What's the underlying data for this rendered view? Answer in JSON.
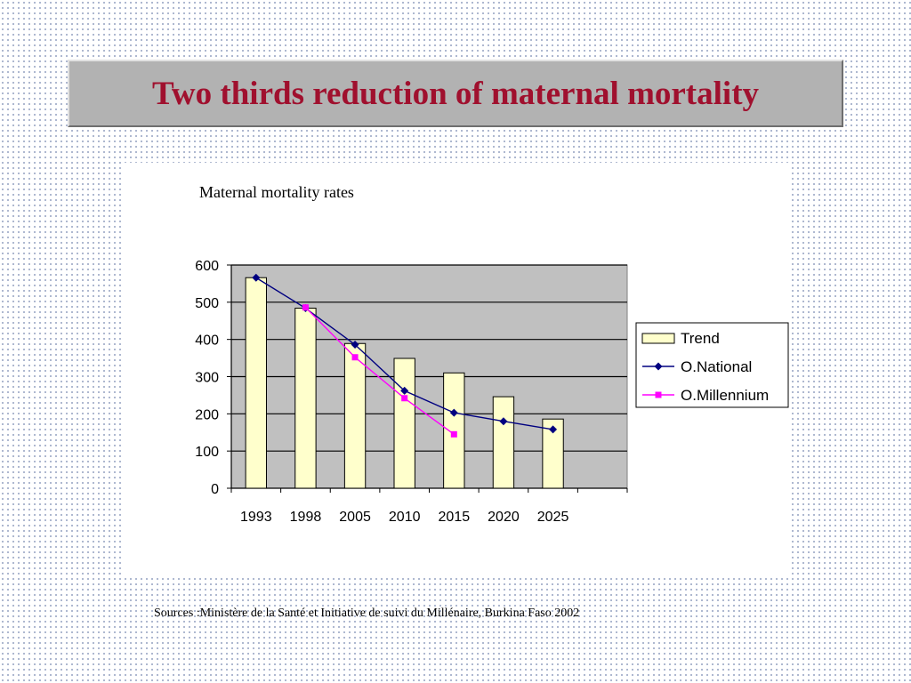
{
  "slide": {
    "title": "Two thirds reduction of maternal mortality",
    "source": "Sources :Ministère de la Santé et Initiative de suivi du Millénaire, Burkina Faso 2002"
  },
  "colors": {
    "title": "#a0102e",
    "banner": "#b2b2b2",
    "plot_area": "#c0c0c0",
    "bar_fill": "#ffffcc",
    "national": "#000080",
    "millennium": "#ff00ff"
  },
  "chart_data": {
    "type": "bar",
    "title": "Maternal mortality rates",
    "xlabel": "",
    "ylabel": "",
    "categories": [
      "1993",
      "1998",
      "2005",
      "2010",
      "2015",
      "2020",
      "2025"
    ],
    "ylim": [
      0,
      600
    ],
    "yticks": [
      0,
      100,
      200,
      300,
      400,
      500,
      600
    ],
    "grid": true,
    "legend_position": "right",
    "series": [
      {
        "name": "Trend",
        "kind": "bar",
        "values": [
          566,
          484,
          389,
          349,
          310,
          246,
          186
        ]
      },
      {
        "name": "O.National",
        "kind": "line",
        "marker": "diamond",
        "values": [
          566,
          484,
          386,
          262,
          203,
          180,
          158
        ]
      },
      {
        "name": "O.Millennium",
        "kind": "line",
        "marker": "square",
        "values": [
          null,
          486,
          352,
          242,
          145,
          null,
          null
        ]
      }
    ]
  }
}
